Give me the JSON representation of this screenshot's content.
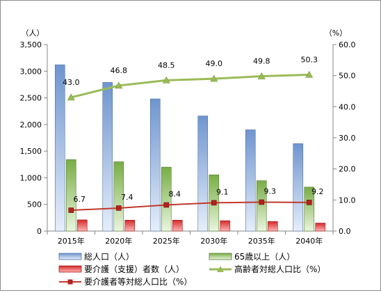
{
  "chart_data": {
    "type": "bar",
    "categories": [
      "2015年",
      "2020年",
      "2025年",
      "2030年",
      "2035年",
      "2040年"
    ],
    "y_left": {
      "unit": "（人）",
      "range": [
        0,
        3500
      ],
      "ticks": [
        "0",
        "500",
        "1,000",
        "1,500",
        "2,000",
        "2,500",
        "3,000",
        "3,500"
      ]
    },
    "y_right": {
      "unit": "（%）",
      "range": [
        0,
        60
      ],
      "ticks": [
        "0.0",
        "10.0",
        "20.0",
        "30.0",
        "40.0",
        "50.0",
        "60.0"
      ]
    },
    "series": [
      {
        "name": "総人口（人）",
        "type": "bar",
        "axis": "left",
        "color": "#7da2d6",
        "values": [
          3120,
          2790,
          2480,
          2160,
          1900,
          1640
        ]
      },
      {
        "name": "65歳以上（人）",
        "type": "bar",
        "axis": "left",
        "color": "#7fb24d",
        "values": [
          1340,
          1300,
          1200,
          1055,
          945,
          825
        ]
      },
      {
        "name": "要介護（支援）者数（人）",
        "type": "bar",
        "axis": "left",
        "color": "#d42a2a",
        "values": [
          210,
          205,
          205,
          195,
          180,
          150
        ]
      },
      {
        "name": "高齢者対総人口比（%）",
        "type": "line",
        "axis": "right",
        "color": "#9bbb59",
        "values": [
          43.0,
          46.8,
          48.5,
          49.0,
          49.8,
          50.3
        ],
        "labels": [
          "43.0",
          "46.8",
          "48.5",
          "49.0",
          "49.8",
          "50.3"
        ]
      },
      {
        "name": "要介護者等対総人口比（%）",
        "type": "line",
        "axis": "right",
        "color": "#c0392b",
        "values": [
          6.7,
          7.4,
          8.4,
          9.1,
          9.3,
          9.2
        ],
        "labels": [
          "6.7",
          "7.4",
          "8.4",
          "9.1",
          "9.3",
          "9.2"
        ]
      }
    ],
    "grid": false,
    "legend": "bottom"
  }
}
